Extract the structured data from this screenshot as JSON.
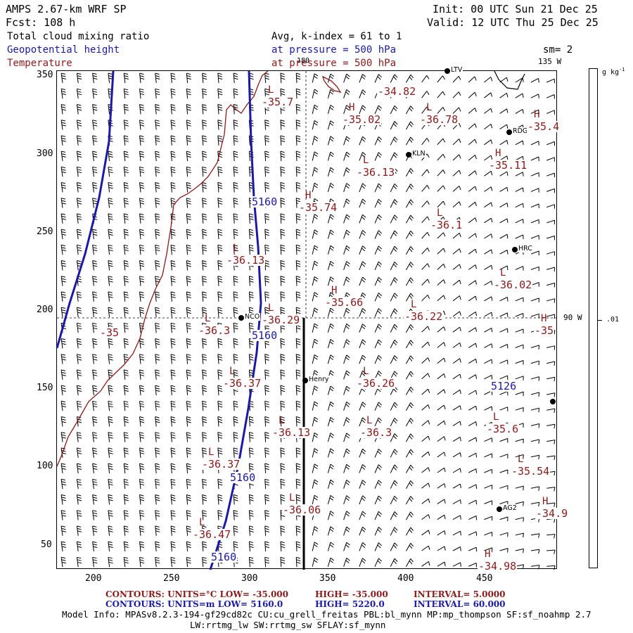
{
  "header": {
    "model_title": "AMPS 2.67-km WRF SP",
    "fcst": "Fcst:  108 h",
    "init": "Init: 00 UTC Sun 21 Dec 25",
    "valid": "Valid: 12 UTC Thu 25 Dec 25",
    "field1": "Total cloud mixing ratio",
    "field2": "Geopotential height",
    "field3": "Temperature",
    "avg": "Avg, k-index =  61 to   1",
    "pressure1": "at pressure =  500 hPa",
    "pressure2": "at pressure =  500 hPa",
    "sm": "sm= 2"
  },
  "plot": {
    "meridians": [
      "180",
      "135 W",
      "90 W"
    ],
    "x_ticks": [
      "200",
      "250",
      "300",
      "350",
      "400",
      "450"
    ],
    "y_ticks": [
      "350",
      "300",
      "250",
      "200",
      "150",
      "100",
      "50"
    ],
    "colorbar_unit": "g kg",
    "colorbar_unit_sup": "-1",
    "colorbar_value": ".01",
    "colors": {
      "height": "#1a1aa6",
      "temperature": "#8b1a1a",
      "barbs": "#000000"
    },
    "stations": [
      {
        "name": "NCO"
      },
      {
        "name": "Henry"
      },
      {
        "name": "RDG"
      },
      {
        "name": "KLN"
      },
      {
        "name": "HRC"
      },
      {
        "name": "AG2"
      },
      {
        "name": "LTV"
      }
    ],
    "temp_labels": [
      {
        "hl": "L",
        "value": "-35.7"
      },
      {
        "hl": "",
        "value": "-34.82"
      },
      {
        "hl": "H",
        "value": "-35.02"
      },
      {
        "hl": "L",
        "value": "-36.78"
      },
      {
        "hl": "H",
        "value": "-35.4"
      },
      {
        "hl": "L",
        "value": "-36.13"
      },
      {
        "hl": "H",
        "value": "-35.11"
      },
      {
        "hl": "H",
        "value": "-35.74"
      },
      {
        "hl": "L",
        "value": "-36.1"
      },
      {
        "hl": "L",
        "value": "-36.13"
      },
      {
        "hl": "L",
        "value": "-36.02"
      },
      {
        "hl": "H",
        "value": "-35.66"
      },
      {
        "hl": "L",
        "value": "-36.29"
      },
      {
        "hl": "L",
        "value": "-36.3"
      },
      {
        "hl": "",
        "value": "-35"
      },
      {
        "hl": "L",
        "value": "-36.22"
      },
      {
        "hl": "H",
        "value": "-35"
      },
      {
        "hl": "L",
        "value": "-36.37"
      },
      {
        "hl": "L",
        "value": "-36.26"
      },
      {
        "hl": "L",
        "value": "-36.13"
      },
      {
        "hl": "L",
        "value": "-36.3"
      },
      {
        "hl": "L",
        "value": "-35.6"
      },
      {
        "hl": "L",
        "value": "-36.37"
      },
      {
        "hl": "L",
        "value": "-35.54"
      },
      {
        "hl": "L",
        "value": "-36.06"
      },
      {
        "hl": "H",
        "value": "-34.9"
      },
      {
        "hl": "L",
        "value": "-36.47"
      },
      {
        "hl": "H",
        "value": "-34.98"
      }
    ],
    "height_labels": [
      "5160",
      "5160",
      "5160",
      "5160",
      "5126"
    ]
  },
  "footer": {
    "temp_contours": "CONTOURS:  UNITS=°C  LOW=  -35.000",
    "temp_high": "HIGH=  -35.000",
    "temp_interval": "INTERVAL=    5.0000",
    "hgt_contours": "CONTOURS:  UNITS=m  LOW=   5160.0",
    "hgt_high": "HIGH=   5220.0",
    "hgt_interval": "INTERVAL=    60.000",
    "model_info": "Model Info: MPASv8.2.3-194-gf29cd82c CU:cu_grell_freitas PBL:bl_mynn MP:mp_thompson SF:sf_noahmp 2.7",
    "model_info2": "LW:rrtmg_lw SW:rrtmg_sw SFLAY:sf_mynn"
  }
}
